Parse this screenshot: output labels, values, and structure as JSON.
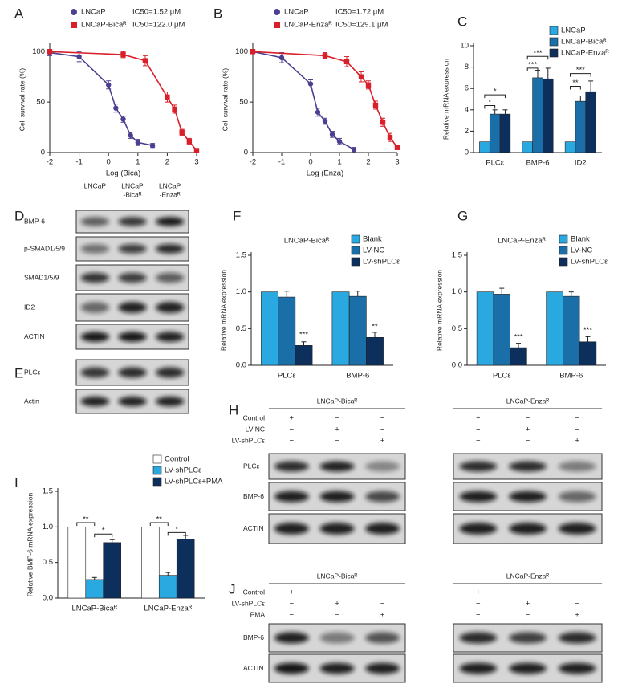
{
  "chart_data": [
    {
      "panel": "A",
      "type": "line",
      "y_label": "Cell survival rate (%)",
      "x_label": "Log (Bica)",
      "xlim": [
        -2,
        3
      ],
      "xticks": [
        -2,
        -1,
        0,
        1,
        2,
        3
      ],
      "ylim": [
        0,
        105
      ],
      "yticks": [
        0,
        50,
        100
      ],
      "series": [
        {
          "name": "LNCaP",
          "note": "IC50=1.52 μM",
          "color": "#4b3f8f",
          "marker": "circle",
          "x": [
            -2,
            -1,
            0,
            0.25,
            0.5,
            0.75,
            1,
            1.5
          ],
          "values": [
            99,
            95,
            67,
            44,
            33,
            17,
            10,
            7
          ],
          "errors": [
            3,
            5,
            4,
            4,
            3,
            3,
            3,
            2
          ]
        },
        {
          "name": "LNCaP-Bicaᴿ",
          "note": "IC50=122.0 μM",
          "color": "#d81f2a",
          "marker": "square",
          "x": [
            -2,
            0.5,
            1.25,
            2,
            2.25,
            2.5,
            2.75,
            3
          ],
          "values": [
            100,
            97,
            91,
            55,
            43,
            20,
            11,
            2
          ],
          "errors": [
            2,
            3,
            5,
            5,
            4,
            3,
            3,
            2
          ]
        }
      ]
    },
    {
      "panel": "B",
      "type": "line",
      "y_label": "Cell survival rate (%)",
      "x_label": "Log (Enza)",
      "xlim": [
        -2,
        3
      ],
      "xticks": [
        -2,
        -1,
        0,
        1,
        2,
        3
      ],
      "ylim": [
        0,
        105
      ],
      "yticks": [
        0,
        50,
        100
      ],
      "series": [
        {
          "name": "LNCaP",
          "note": "IC50=1.72 μM",
          "color": "#4b3f8f",
          "marker": "circle",
          "x": [
            -2,
            -1,
            0,
            0.25,
            0.5,
            0.75,
            1,
            1.5
          ],
          "values": [
            100,
            94,
            68,
            40,
            31,
            18,
            11,
            3
          ],
          "errors": [
            2,
            5,
            4,
            4,
            3,
            3,
            3,
            2
          ]
        },
        {
          "name": "LNCaP-Enzaᴿ",
          "note": "IC50=129.1 μM",
          "color": "#d81f2a",
          "marker": "square",
          "x": [
            -2,
            0.5,
            1.25,
            1.75,
            2,
            2.25,
            2.5,
            2.75,
            3
          ],
          "values": [
            100,
            96,
            90,
            75,
            67,
            47,
            30,
            15,
            5
          ],
          "errors": [
            2,
            3,
            5,
            5,
            4,
            4,
            4,
            4,
            2
          ]
        }
      ]
    },
    {
      "panel": "C",
      "type": "bar",
      "y_label": "Relative mRNA expression",
      "categories": [
        "PLCε",
        "BMP-6",
        "ID2"
      ],
      "ylim": [
        0,
        10
      ],
      "yticks": [
        0,
        2,
        4,
        6,
        8,
        10
      ],
      "series": [
        {
          "name": "LNCaP",
          "color": "#29a9e0",
          "values": [
            1,
            1,
            1
          ],
          "errors": [
            0,
            0,
            0
          ]
        },
        {
          "name": "LNCaP-Bicaᴿ",
          "color": "#1b6fa8",
          "values": [
            3.6,
            7.0,
            4.8
          ],
          "errors": [
            0.4,
            0.7,
            0.5
          ]
        },
        {
          "name": "LNCaP-Enzaᴿ",
          "color": "#0d2f5c",
          "values": [
            3.6,
            6.9,
            5.7
          ],
          "errors": [
            0.4,
            1.0,
            1.0
          ]
        }
      ],
      "annotations": [
        "*",
        "*",
        "***",
        "***",
        "**",
        "***"
      ]
    },
    {
      "panel": "F",
      "type": "bar",
      "title": "LNCaP-Bicaᴿ",
      "y_label": "Relative mRNA expression",
      "categories": [
        "PLCε",
        "BMP-6"
      ],
      "ylim": [
        0,
        1.5
      ],
      "yticks": [
        {
          "value": 0,
          "label": "0.0"
        },
        {
          "value": 0.5,
          "label": "0.5"
        },
        {
          "value": 1,
          "label": "1.0"
        },
        {
          "value": 1.5,
          "label": "1.5"
        }
      ],
      "series": [
        {
          "name": "Blank",
          "color": "#29a9e0",
          "values": [
            1,
            1
          ],
          "errors": [
            0,
            0
          ]
        },
        {
          "name": "LV-NC",
          "color": "#1b6fa8",
          "values": [
            0.93,
            0.94
          ],
          "errors": [
            0.08,
            0.07
          ]
        },
        {
          "name": "LV-shPLCε",
          "color": "#0d2f5c",
          "values": [
            0.27,
            0.38
          ],
          "errors": [
            0.05,
            0.07
          ]
        }
      ],
      "annotations": [
        "***",
        "**"
      ]
    },
    {
      "panel": "G",
      "type": "bar",
      "title": "LNCaP-Enzaᴿ",
      "y_label": "Relative mRNA expression",
      "categories": [
        "PLCε",
        "BMP-6"
      ],
      "ylim": [
        0,
        1.5
      ],
      "yticks": [
        {
          "value": 0,
          "label": "0.0"
        },
        {
          "value": 0.5,
          "label": "0.5"
        },
        {
          "value": 1,
          "label": "1.0"
        },
        {
          "value": 1.5,
          "label": "1.5"
        }
      ],
      "series": [
        {
          "name": "Blank",
          "color": "#29a9e0",
          "values": [
            1,
            1
          ],
          "errors": [
            0,
            0
          ]
        },
        {
          "name": "LV-NC",
          "color": "#1b6fa8",
          "values": [
            0.97,
            0.94
          ],
          "errors": [
            0.08,
            0.06
          ]
        },
        {
          "name": "LV-shPLCε",
          "color": "#0d2f5c",
          "values": [
            0.24,
            0.32
          ],
          "errors": [
            0.06,
            0.07
          ]
        }
      ],
      "annotations": [
        "***",
        "***"
      ]
    },
    {
      "panel": "I",
      "type": "bar",
      "y_label": "Relative BMP-6 mRNA expression",
      "categories": [
        "LNCaP-Bicaᴿ",
        "LNCaP-Enzaᴿ"
      ],
      "ylim": [
        0,
        1.5
      ],
      "yticks": [
        {
          "value": 0,
          "label": "0.0"
        },
        {
          "value": 0.5,
          "label": "0.5"
        },
        {
          "value": 1,
          "label": "1.0"
        },
        {
          "value": 1.5,
          "label": "1.5"
        }
      ],
      "series": [
        {
          "name": "Control",
          "color": "#ffffff",
          "values": [
            1,
            1
          ],
          "errors": [
            0,
            0
          ]
        },
        {
          "name": "LV-shPLCε",
          "color": "#29a9e0",
          "values": [
            0.26,
            0.32
          ],
          "errors": [
            0.03,
            0.04
          ]
        },
        {
          "name": "LV-shPLCε+PMA",
          "color": "#0d2f5c",
          "values": [
            0.78,
            0.83
          ],
          "errors": [
            0.04,
            0.05
          ]
        }
      ],
      "annotations": [
        "**",
        "*",
        "**",
        "*"
      ]
    }
  ],
  "blots": {
    "D": {
      "panel": "D",
      "columns": [
        [
          "LNCaP"
        ],
        [
          "LNCaP",
          "-Bicaᴿ"
        ],
        [
          "LNCaP",
          "-Enzaᴿ"
        ]
      ],
      "rows": [
        "BMP-6",
        "p-SMAD1/5/9",
        "SMAD1/5/9",
        "ID2",
        "ACTIN"
      ]
    },
    "E": {
      "panel": "E",
      "rows": [
        "PLCε",
        "Actin"
      ]
    },
    "H": {
      "panel": "H",
      "groups": [
        "LNCaP-Bicaᴿ",
        "LNCaP-Enzaᴿ"
      ],
      "conditions": [
        "Control",
        "LV-NC",
        "LV-shPLCε"
      ],
      "signs": [
        [
          "+",
          "−",
          "−"
        ],
        [
          "−",
          "+",
          "−"
        ],
        [
          "−",
          "−",
          "+"
        ]
      ],
      "rows": [
        "PLCε",
        "BMP-6",
        "ACTIN"
      ]
    },
    "J": {
      "panel": "J",
      "groups": [
        "LNCaP-Bicaᴿ",
        "LNCaP-Enzaᴿ"
      ],
      "conditions": [
        "Control",
        "LV-shPLCε",
        "PMA"
      ],
      "signs": [
        [
          "+",
          "−",
          "−"
        ],
        [
          "−",
          "+",
          "−"
        ],
        [
          "−",
          "−",
          "+"
        ]
      ],
      "rows": [
        "BMP-6",
        "ACTIN"
      ]
    }
  }
}
